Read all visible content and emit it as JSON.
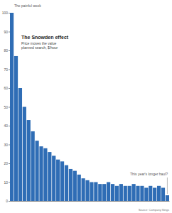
{
  "chart_data": {
    "type": "bar",
    "title": "The Snowden effect",
    "subtitle": "Price moves the value planned search, $/hour",
    "annotations": [
      "The painful week",
      "This year's longer haul?"
    ],
    "source": "Source: Company filings",
    "categories": [
      null,
      null,
      null,
      null,
      null,
      null,
      null,
      null,
      null,
      null,
      null,
      null,
      null,
      null,
      null,
      null,
      null,
      null,
      null,
      null,
      null,
      null,
      null,
      null,
      null,
      null,
      null,
      null,
      null,
      null,
      null,
      null,
      null,
      null,
      null,
      null,
      null,
      null
    ],
    "values": [
      100,
      77,
      60,
      50,
      43,
      37,
      32,
      29,
      28,
      26,
      24,
      22,
      21,
      19,
      17,
      16,
      14,
      12,
      11,
      10,
      10,
      9,
      9,
      10,
      9,
      8,
      9,
      8,
      8,
      9,
      8,
      8,
      7,
      8,
      7,
      8,
      7,
      3
    ],
    "color": "#2f6db5",
    "ylim": [
      0,
      100
    ],
    "yticks": [
      0,
      10,
      20,
      30,
      40,
      50,
      60,
      70,
      80,
      90,
      100
    ],
    "grid": false
  }
}
